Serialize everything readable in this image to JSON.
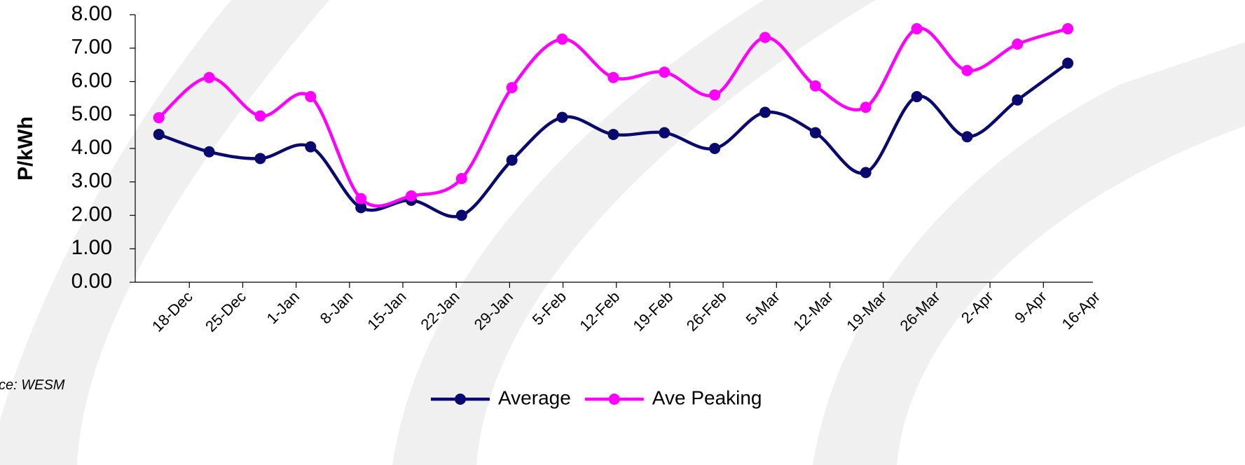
{
  "chart_data": {
    "type": "line",
    "y_label": "P/kWh",
    "source": "ce: WESM",
    "x": [
      -4.0,
      2.6,
      9.3,
      15.9,
      22.5,
      29.1,
      35.7,
      42.3,
      48.9,
      55.6,
      62.3,
      68.9,
      75.5,
      82.1,
      88.7,
      95.4,
      102.0,
      108.6,
      115.2
    ],
    "xlim": [
      -7.1,
      118.5
    ],
    "xticks": [
      {
        "value": 0,
        "label": "18-Dec"
      },
      {
        "value": 7,
        "label": "25-Dec"
      },
      {
        "value": 14,
        "label": "1-Jan"
      },
      {
        "value": 21,
        "label": "8-Jan"
      },
      {
        "value": 28,
        "label": "15-Jan"
      },
      {
        "value": 35,
        "label": "22-Jan"
      },
      {
        "value": 42,
        "label": "29-Jan"
      },
      {
        "value": 49,
        "label": "5-Feb"
      },
      {
        "value": 56,
        "label": "12-Feb"
      },
      {
        "value": 63,
        "label": "19-Feb"
      },
      {
        "value": 70,
        "label": "26-Feb"
      },
      {
        "value": 77,
        "label": "5-Mar"
      },
      {
        "value": 84,
        "label": "12-Mar"
      },
      {
        "value": 91,
        "label": "19-Mar"
      },
      {
        "value": 98,
        "label": "26-Mar"
      },
      {
        "value": 105,
        "label": "2-Apr"
      },
      {
        "value": 112,
        "label": "9-Apr"
      },
      {
        "value": 119,
        "label": "16-Apr"
      }
    ],
    "ylim": [
      0,
      8
    ],
    "yticks": [
      {
        "value": 0,
        "label": "0.00"
      },
      {
        "value": 1,
        "label": "1.00"
      },
      {
        "value": 2,
        "label": "2.00"
      },
      {
        "value": 3,
        "label": "3.00"
      },
      {
        "value": 4,
        "label": "4.00"
      },
      {
        "value": 5,
        "label": "5.00"
      },
      {
        "value": 6,
        "label": "6.00"
      },
      {
        "value": 7,
        "label": "7.00"
      },
      {
        "value": 8,
        "label": "8.00"
      }
    ],
    "legend": "bottom",
    "series": [
      {
        "name": "Average",
        "color": "#0a0a6e",
        "values": [
          4.42,
          3.9,
          3.7,
          4.05,
          2.23,
          2.45,
          2.0,
          3.65,
          4.93,
          4.42,
          4.47,
          4.0,
          5.08,
          4.47,
          3.28,
          5.55,
          4.35,
          5.45,
          6.55
        ]
      },
      {
        "name": "Ave Peaking",
        "color": "#ff00ff",
        "values": [
          4.92,
          6.12,
          4.97,
          5.55,
          2.5,
          2.58,
          3.1,
          5.82,
          7.27,
          6.12,
          6.28,
          5.6,
          7.32,
          5.87,
          5.23,
          7.58,
          6.33,
          7.12,
          7.58
        ]
      }
    ]
  }
}
